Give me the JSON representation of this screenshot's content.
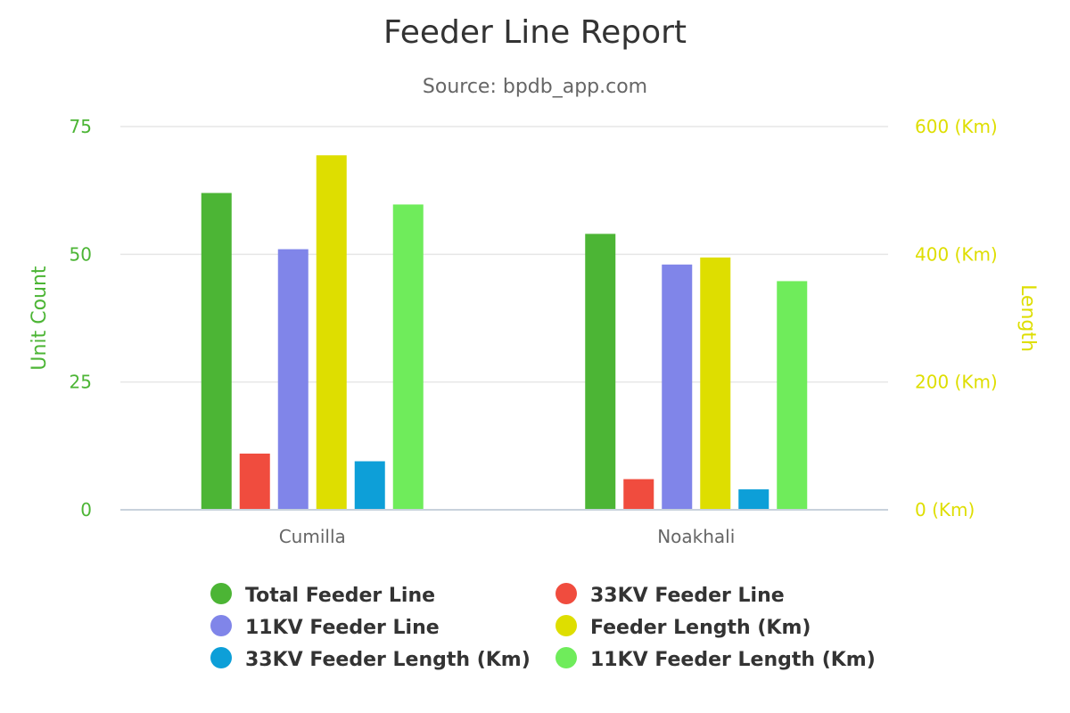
{
  "chart_data": {
    "type": "bar",
    "title": "Feeder Line Report",
    "subtitle": "Source: bpdb_app.com",
    "categories": [
      "Cumilla",
      "Noakhali"
    ],
    "y_left": {
      "label": "Unit Count",
      "ticks": [
        "0",
        "25",
        "50",
        "75"
      ],
      "ylim": [
        0,
        75
      ],
      "color": "#4cb535"
    },
    "y_right": {
      "label": "Length",
      "ticks": [
        "0 (Km)",
        "200 (Km)",
        "400 (Km)",
        "600 (Km)"
      ],
      "ylim": [
        0,
        600
      ],
      "color": "#dede00"
    },
    "grid": true,
    "legend_position": "bottom",
    "series": [
      {
        "name": "Total Feeder Line",
        "axis": "left",
        "color": "#4cb535",
        "values": [
          62,
          54
        ]
      },
      {
        "name": "33KV Feeder Line",
        "axis": "left",
        "color": "#f04c3e",
        "values": [
          11,
          6
        ]
      },
      {
        "name": "11KV Feeder Line",
        "axis": "left",
        "color": "#8085e9",
        "values": [
          51,
          48
        ]
      },
      {
        "name": "Feeder Length (Km)",
        "axis": "right",
        "color": "#dede00",
        "values": [
          555,
          395
        ]
      },
      {
        "name": "33KV Feeder Length (Km)",
        "axis": "right",
        "color": "#0d9fd8",
        "values": [
          76,
          32
        ]
      },
      {
        "name": "11KV Feeder Length (Km)",
        "axis": "right",
        "color": "#6fec5b",
        "values": [
          478,
          358
        ]
      }
    ]
  }
}
